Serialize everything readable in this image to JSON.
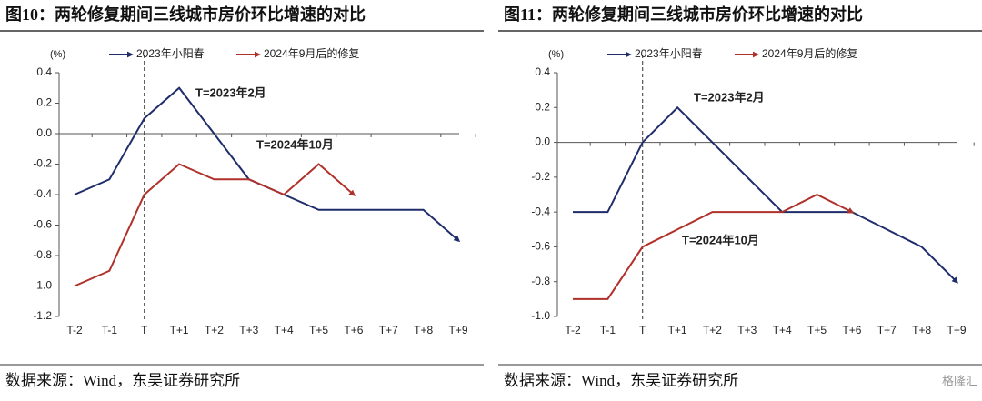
{
  "chart_data": [
    {
      "type": "line",
      "title": "图10：两轮修复期间三线城市房价环比增速的对比",
      "unit": "(%)",
      "categories": [
        "T-2",
        "T-1",
        "T",
        "T+1",
        "T+2",
        "T+3",
        "T+4",
        "T+5",
        "T+6",
        "T+7",
        "T+8",
        "T+9"
      ],
      "series": [
        {
          "name": "2023年小阳春",
          "color": "#1f2d6b",
          "values": [
            -0.4,
            -0.3,
            0.1,
            0.3,
            0.0,
            -0.3,
            -0.4,
            -0.5,
            -0.5,
            -0.5,
            -0.5,
            -0.7
          ]
        },
        {
          "name": "2024年9月后的修复",
          "color": "#b0312a",
          "values": [
            -1.0,
            -0.9,
            -0.4,
            -0.2,
            -0.3,
            -0.3,
            -0.4,
            -0.2,
            -0.4,
            null,
            null,
            null
          ]
        }
      ],
      "ylim": [
        -1.2,
        0.4
      ],
      "yticks": [
        0.4,
        0.2,
        {
          "value": 0,
          "label": "0.0"
        },
        -0.2,
        -0.4,
        -0.6,
        -0.8,
        {
          "value": -1,
          "label": "-1.0"
        },
        -1.2
      ],
      "annotations": [
        {
          "text": "T=2023年2月",
          "color": "#111111"
        },
        {
          "text": "T=2024年10月",
          "color": "#b0312a"
        }
      ],
      "source": "数据来源：Wind，东吴证券研究所"
    },
    {
      "type": "line",
      "title": "图11：两轮修复期间三线城市房价环比增速的对比",
      "unit": "(%)",
      "categories": [
        "T-2",
        "T-1",
        "T",
        "T+1",
        "T+2",
        "T+3",
        "T+4",
        "T+5",
        "T+6",
        "T+7",
        "T+8",
        "T+9"
      ],
      "series": [
        {
          "name": "2023年小阳春",
          "color": "#1f2d6b",
          "values": [
            -0.4,
            -0.4,
            0.0,
            0.2,
            0.0,
            -0.2,
            -0.4,
            -0.4,
            -0.4,
            -0.5,
            -0.6,
            -0.8
          ]
        },
        {
          "name": "2024年9月后的修复",
          "color": "#b0312a",
          "values": [
            -0.9,
            -0.9,
            -0.6,
            -0.5,
            -0.4,
            -0.4,
            -0.4,
            -0.3,
            -0.4,
            null,
            null,
            null
          ]
        }
      ],
      "ylim": [
        -1.0,
        0.4
      ],
      "yticks": [
        0.4,
        0.2,
        {
          "value": 0,
          "label": "0.0"
        },
        -0.2,
        -0.4,
        -0.6,
        -0.8,
        {
          "value": -1,
          "label": "-1.0"
        }
      ],
      "annotations": [
        {
          "text": "T=2023年2月",
          "color": "#111111"
        },
        {
          "text": "T=2024年10月",
          "color": "#b0312a"
        }
      ],
      "source": "数据来源：Wind，东吴证券研究所"
    }
  ],
  "watermark": "格隆汇"
}
